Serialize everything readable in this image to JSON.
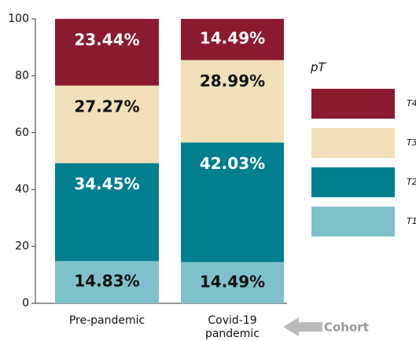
{
  "chart_data": {
    "type": "stacked_bar",
    "categories": [
      "Pre-pandemic",
      "Covid-19\npandemic"
    ],
    "x_label": "Cohort",
    "legend_title": "pT",
    "series": [
      {
        "name": "T1",
        "color": "#7fc1cb",
        "values": [
          14.83,
          14.49
        ],
        "value_labels": [
          "14.83%",
          "14.49%"
        ]
      },
      {
        "name": "T2",
        "color": "#007f8f",
        "values": [
          34.45,
          42.03
        ],
        "value_labels": [
          "34.45%",
          "42.03%"
        ]
      },
      {
        "name": "T3",
        "color": "#f0dfb9",
        "values": [
          27.27,
          28.99
        ],
        "value_labels": [
          "27.27%",
          "28.99%"
        ]
      },
      {
        "name": "T4",
        "color": "#8b1a2e",
        "values": [
          23.44,
          14.49
        ],
        "value_labels": [
          "23.44%",
          "14.49%"
        ]
      }
    ],
    "ylim": [
      0,
      100
    ],
    "yticks": [
      0,
      20,
      40,
      60,
      80,
      100
    ]
  }
}
